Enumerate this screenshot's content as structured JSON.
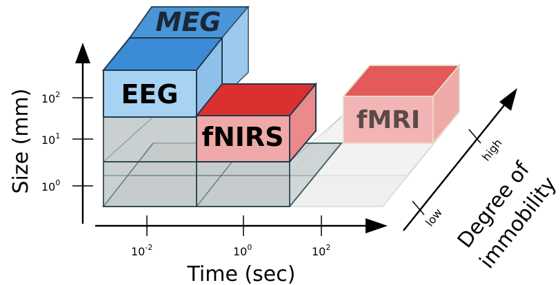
{
  "axes": {
    "y_title": "Size (mm)",
    "x_title": "Time (sec)",
    "z_title_line1": "Degree of",
    "z_title_line2": "immobility",
    "y_ticks": [
      {
        "base": "10",
        "exp": "2"
      },
      {
        "base": "10",
        "exp": "1"
      },
      {
        "base": "10",
        "exp": "0"
      }
    ],
    "x_ticks": [
      {
        "base": "10",
        "exp": "-2"
      },
      {
        "base": "10",
        "exp": "0"
      },
      {
        "base": "10",
        "exp": "2"
      }
    ],
    "z_ticks": {
      "low": "low",
      "high": "high"
    }
  },
  "modalities": {
    "meg": {
      "label": "MEG",
      "color": "#3d8ed6"
    },
    "eeg": {
      "label": "EEG",
      "color": "#3d8ed6"
    },
    "fnirs": {
      "label": "fNIRS",
      "color": "#e03a3a"
    },
    "fmri": {
      "label": "fMRI",
      "color": "#e86a6a"
    }
  }
}
